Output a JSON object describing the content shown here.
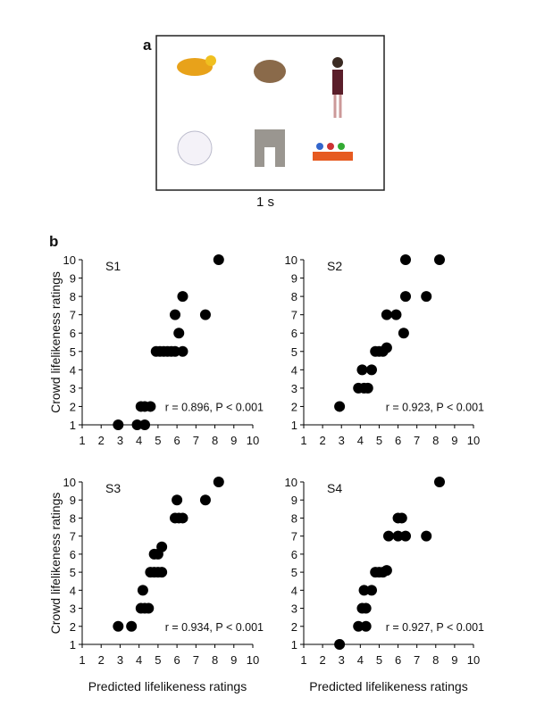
{
  "panel_a": {
    "label": "a",
    "caption": "1 s"
  },
  "panel_b_label": "b",
  "chart_data": [
    {
      "type": "scatter",
      "label": "S1",
      "ylabel": "Crowd lifelikeness ratings",
      "annotation": "r = 0.896, P < 0.001",
      "color": "#000000",
      "x": [
        2.9,
        3.9,
        4.3,
        4.1,
        4.3,
        4.6,
        4.9,
        5.1,
        5.3,
        5.5,
        5.7,
        5.9,
        6.3,
        6.1,
        5.9,
        6.3,
        7.5,
        8.2
      ],
      "values": [
        1,
        1,
        1,
        2,
        2,
        2,
        5,
        5,
        5,
        5,
        5,
        5,
        5,
        6,
        7,
        8,
        7,
        10
      ],
      "xlim": [
        1,
        10
      ],
      "ylim": [
        1,
        10
      ],
      "xticks": [
        1,
        2,
        3,
        4,
        5,
        6,
        7,
        8,
        9,
        10
      ],
      "yticks": [
        1,
        2,
        3,
        4,
        5,
        6,
        7,
        8,
        9,
        10
      ]
    },
    {
      "type": "scatter",
      "label": "S2",
      "annotation": "r = 0.923, P < 0.001",
      "color": "#000000",
      "x": [
        2.9,
        3.9,
        4.2,
        4.4,
        4.1,
        4.6,
        4.8,
        5.0,
        5.2,
        5.4,
        5.4,
        5.9,
        6.3,
        6.4,
        6.4,
        7.5,
        8.2
      ],
      "values": [
        2,
        3,
        3,
        3,
        4,
        4,
        5,
        5,
        5,
        5.2,
        7,
        7,
        6,
        8,
        10,
        8,
        10
      ],
      "xlim": [
        1,
        10
      ],
      "ylim": [
        1,
        10
      ],
      "xticks": [
        1,
        2,
        3,
        4,
        5,
        6,
        7,
        8,
        9,
        10
      ],
      "yticks": [
        1,
        2,
        3,
        4,
        5,
        6,
        7,
        8,
        9,
        10
      ]
    },
    {
      "type": "scatter",
      "label": "S3",
      "xlabel": "Predicted lifelikeness ratings",
      "ylabel": "Crowd lifelikeness ratings",
      "annotation": "r = 0.934, P < 0.001",
      "color": "#000000",
      "x": [
        2.9,
        3.6,
        4.1,
        4.3,
        4.5,
        4.2,
        4.6,
        4.8,
        5.0,
        5.2,
        4.8,
        5.0,
        5.2,
        5.9,
        6.1,
        6.3,
        6.0,
        7.5,
        8.2
      ],
      "values": [
        2,
        2,
        3,
        3,
        3,
        4,
        5,
        5,
        5,
        5,
        6,
        6,
        6.4,
        8,
        8,
        8,
        9,
        9,
        10
      ],
      "xlim": [
        1,
        10
      ],
      "ylim": [
        1,
        10
      ],
      "xticks": [
        1,
        2,
        3,
        4,
        5,
        6,
        7,
        8,
        9,
        10
      ],
      "yticks": [
        1,
        2,
        3,
        4,
        5,
        6,
        7,
        8,
        9,
        10
      ]
    },
    {
      "type": "scatter",
      "label": "S4",
      "xlabel": "Predicted lifelikeness ratings",
      "annotation": "r = 0.927, P < 0.001",
      "color": "#000000",
      "x": [
        2.9,
        3.9,
        4.3,
        4.1,
        4.3,
        4.2,
        4.6,
        4.8,
        5.0,
        5.2,
        5.4,
        5.5,
        6.0,
        6.2,
        6.0,
        6.4,
        7.5,
        8.2
      ],
      "values": [
        1,
        2,
        2,
        3,
        3,
        4,
        4,
        5,
        5,
        5,
        5.1,
        7,
        8,
        8,
        7,
        7,
        7,
        10
      ],
      "xlim": [
        1,
        10
      ],
      "ylim": [
        1,
        10
      ],
      "xticks": [
        1,
        2,
        3,
        4,
        5,
        6,
        7,
        8,
        9,
        10
      ],
      "yticks": [
        1,
        2,
        3,
        4,
        5,
        6,
        7,
        8,
        9,
        10
      ]
    }
  ]
}
